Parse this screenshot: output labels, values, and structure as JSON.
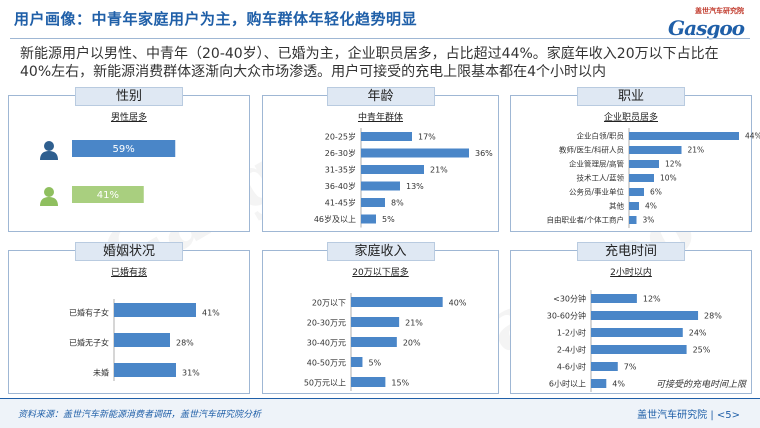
{
  "header": {
    "title": "用户画像：中青年家庭用户为主，购车群体年轻化趋势明显",
    "logo_cn": "盖世汽车研究院",
    "logo_en": "Gasgoo"
  },
  "intro": "新能源用户以男性、中青年（20-40岁）、已婚为主，企业职员居多，占比超过44%。家庭年收入20万以下占比在40%左右，新能源消费群体逐渐向大众市场渗透。用户可接受的充电上限基本都在4个小时以内",
  "panels": {
    "gender": {
      "title": "性别",
      "subtitle": "男性居多"
    },
    "age": {
      "title": "年龄",
      "subtitle": "中青年群体"
    },
    "job": {
      "title": "职业",
      "subtitle": "企业职员居多"
    },
    "marriage": {
      "title": "婚姻状况",
      "subtitle": "已婚有孩"
    },
    "income": {
      "title": "家庭收入",
      "subtitle": "20万以下居多"
    },
    "charge": {
      "title": "充电时间",
      "subtitle": "2小时以内",
      "note": "可接受的充电时间上限"
    }
  },
  "colors": {
    "bar": "#4a86c8",
    "accent": "#1f5fa8",
    "male_icon": "#2f5f8f",
    "female_icon": "#8fbf5f"
  },
  "chart_data": [
    {
      "type": "bar",
      "title": "性别",
      "categories": [
        "男",
        "女"
      ],
      "icons": [
        "male-icon",
        "female-icon"
      ],
      "values": [
        59,
        41
      ],
      "unit": "%",
      "xlim": [
        0,
        100
      ]
    },
    {
      "type": "bar",
      "title": "年龄",
      "categories": [
        "20-25岁",
        "26-30岁",
        "31-35岁",
        "36-40岁",
        "41-45岁",
        "46岁及以上"
      ],
      "values": [
        17,
        36,
        21,
        13,
        8,
        5
      ],
      "unit": "%",
      "xlim": [
        0,
        40
      ]
    },
    {
      "type": "bar",
      "title": "职业",
      "categories": [
        "企业白领/职员",
        "教师/医生/科研人员",
        "企业管理层/高管",
        "技术工人/蓝领",
        "公务员/事业单位",
        "其他",
        "自由职业者/个体工商户"
      ],
      "values": [
        44,
        21,
        12,
        10,
        6,
        4,
        3
      ],
      "unit": "%",
      "xlim": [
        0,
        48
      ]
    },
    {
      "type": "bar",
      "title": "婚姻状况",
      "categories": [
        "已婚有子女",
        "已婚无子女",
        "未婚"
      ],
      "values": [
        41,
        28,
        31
      ],
      "unit": "%",
      "xlim": [
        0,
        50
      ]
    },
    {
      "type": "bar",
      "title": "家庭收入",
      "categories": [
        "20万以下",
        "20-30万元",
        "30-40万元",
        "40-50万元",
        "50万元以上"
      ],
      "values": [
        40,
        21,
        20,
        5,
        15
      ],
      "unit": "%",
      "xlim": [
        0,
        48
      ]
    },
    {
      "type": "bar",
      "title": "充电时间",
      "categories": [
        "<30分钟",
        "30-60分钟",
        "1-2小时",
        "2-4小时",
        "4-6小时",
        "6小时以上"
      ],
      "values": [
        12,
        28,
        24,
        25,
        7,
        4
      ],
      "unit": "%",
      "xlim": [
        0,
        34
      ]
    }
  ],
  "footer": {
    "source": "资料来源：盖世汽车新能源消费者调研，盖世汽车研究院分析",
    "brand": "盖世汽车研究院 | <5>"
  }
}
